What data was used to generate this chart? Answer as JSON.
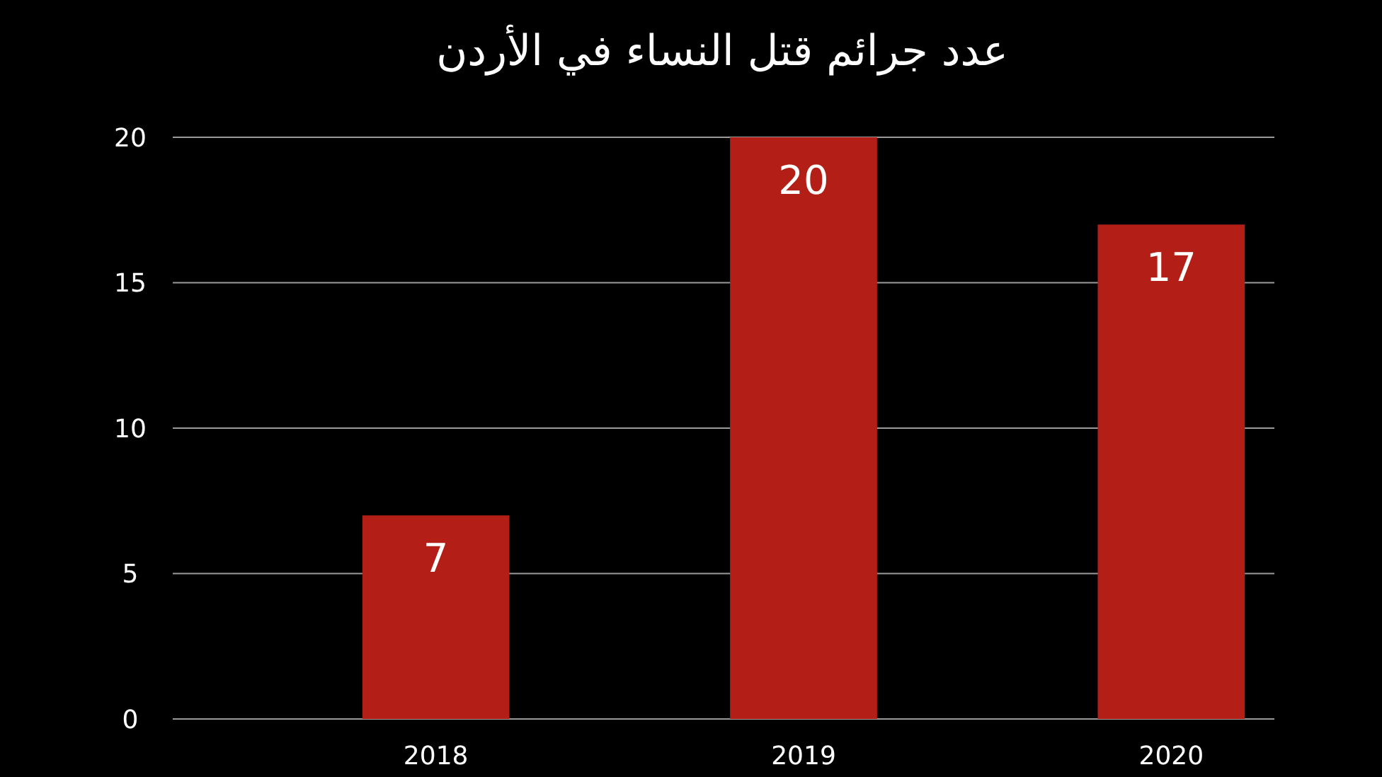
{
  "chart_data": {
    "type": "bar",
    "title": "عدد جرائم قتل النساء في الأردن",
    "categories": [
      "2018",
      "2019",
      "2020"
    ],
    "values": [
      7,
      20,
      17
    ],
    "color": "#b31f16",
    "ylim": [
      0,
      20
    ],
    "yticks": [
      0,
      5,
      10,
      15,
      20
    ],
    "grid": "y",
    "data_labels": true
  }
}
